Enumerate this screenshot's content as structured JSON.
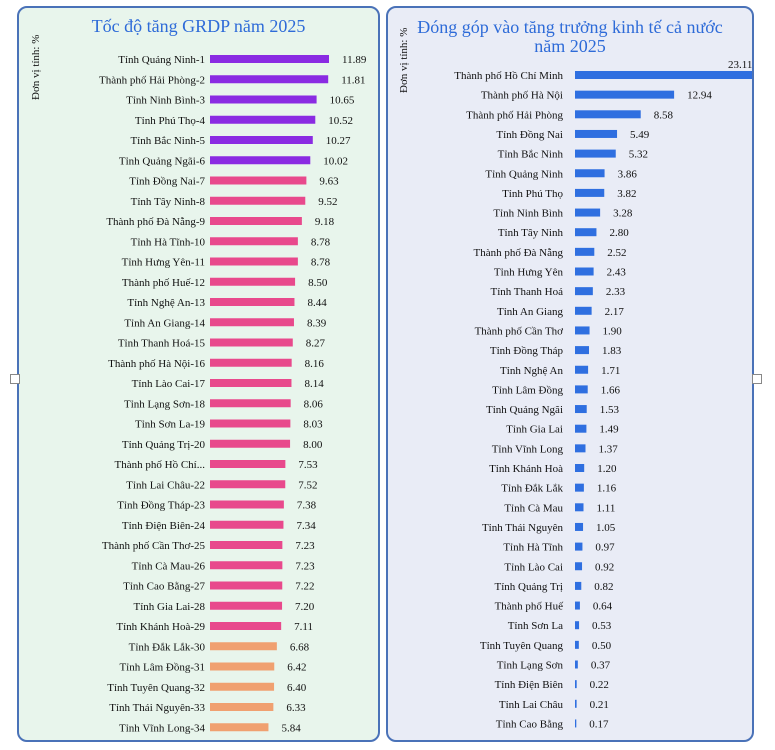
{
  "chart_data": [
    {
      "type": "bar",
      "orientation": "horizontal",
      "title": "Tốc độ tăng GRDP năm 2025",
      "unit_label": "Đơn vị tính: %",
      "categories": [
        "Tỉnh Quảng Ninh-1",
        "Thành phố Hải Phòng-2",
        "Tỉnh Ninh Bình-3",
        "Tỉnh Phú Thọ-4",
        "Tỉnh Bắc Ninh-5",
        "Tỉnh Quảng Ngãi-6",
        "Tỉnh Đồng Nai-7",
        "Tỉnh Tây Ninh-8",
        "Thành phố Đà Nẵng-9",
        "Tỉnh Hà Tĩnh-10",
        "Tỉnh Hưng Yên-11",
        "Thành phố Huế-12",
        "Tỉnh Nghệ An-13",
        "Tỉnh An Giang-14",
        "Tỉnh Thanh Hoá-15",
        "Thành phố Hà Nội-16",
        "Tỉnh Lào Cai-17",
        "Tỉnh Lạng Sơn-18",
        "Tỉnh Sơn La-19",
        "Tỉnh Quảng Trị-20",
        "Thành phố Hồ Chí...",
        "Tỉnh Lai Châu-22",
        "Tỉnh Đồng Tháp-23",
        "Tỉnh Điện Biên-24",
        "Thành phố Cần Thơ-25",
        "Tỉnh Cà Mau-26",
        "Tỉnh Cao Bằng-27",
        "Tỉnh Gia Lai-28",
        "Tỉnh Khánh Hoà-29",
        "Tỉnh Đắk Lắk-30",
        "Tỉnh Lâm Đồng-31",
        "Tỉnh Tuyên Quang-32",
        "Tỉnh Thái Nguyên-33",
        "Tỉnh Vĩnh Long-34"
      ],
      "values": [
        11.89,
        11.81,
        10.65,
        10.52,
        10.27,
        10.02,
        9.63,
        9.52,
        9.18,
        8.78,
        8.78,
        8.5,
        8.44,
        8.39,
        8.27,
        8.16,
        8.14,
        8.06,
        8.03,
        8.0,
        7.53,
        7.52,
        7.38,
        7.34,
        7.23,
        7.23,
        7.22,
        7.2,
        7.11,
        6.68,
        6.42,
        6.4,
        6.33,
        5.84
      ],
      "value_labels": [
        "11.89",
        "11.81",
        "10.65",
        "10.52",
        "10.27",
        "10.02",
        "9.63",
        "9.52",
        "9.18",
        "8.78",
        "8.78",
        "8.50",
        "8.44",
        "8.39",
        "8.27",
        "8.16",
        "8.14",
        "8.06",
        "8.03",
        "8.00",
        "7.53",
        "7.52",
        "7.38",
        "7.34",
        "7.23",
        "7.23",
        "7.22",
        "7.20",
        "7.11",
        "6.68",
        "6.42",
        "6.40",
        "6.33",
        "5.84"
      ],
      "bar_colors": [
        "#8a2be2",
        "#8a2be2",
        "#8a2be2",
        "#8a2be2",
        "#8a2be2",
        "#8a2be2",
        "#e8498c",
        "#e8498c",
        "#e8498c",
        "#e8498c",
        "#e8498c",
        "#e8498c",
        "#e8498c",
        "#e8498c",
        "#e8498c",
        "#e8498c",
        "#e8498c",
        "#e8498c",
        "#e8498c",
        "#e8498c",
        "#e8498c",
        "#e8498c",
        "#e8498c",
        "#e8498c",
        "#e8498c",
        "#e8498c",
        "#e8498c",
        "#e8498c",
        "#e8498c",
        "#f0a070",
        "#f0a070",
        "#f0a070",
        "#f0a070",
        "#f0a070"
      ],
      "xlim": [
        0,
        12
      ],
      "grid": false
    },
    {
      "type": "bar",
      "orientation": "horizontal",
      "title": "Đóng góp vào tăng trưởng kinh tế cả nước năm 2025",
      "unit_label": "Đơn vị tính: %",
      "categories": [
        "Thành phố Hồ Chí Minh",
        "Thành phố Hà Nội",
        "Thành phố Hải Phòng",
        "Tỉnh Đồng Nai",
        "Tỉnh Bắc Ninh",
        "Tỉnh Quảng Ninh",
        "Tỉnh Phú Thọ",
        "Tỉnh Ninh Bình",
        "Tỉnh Tây Ninh",
        "Thành phố Đà Nẵng",
        "Tỉnh Hưng Yên",
        "Tỉnh Thanh Hoá",
        "Tỉnh An Giang",
        "Thành phố Cần Thơ",
        "Tỉnh Đồng Tháp",
        "Tỉnh Nghệ An",
        "Tỉnh Lâm Đồng",
        "Tỉnh Quảng Ngãi",
        "Tỉnh Gia Lai",
        "Tỉnh Vĩnh Long",
        "Tỉnh Khánh Hoà",
        "Tỉnh Đắk Lắk",
        "Tỉnh Cà Mau",
        "Tỉnh Thái Nguyên",
        "Tỉnh Hà Tĩnh",
        "Tỉnh Lào Cai",
        "Tỉnh Quảng Trị",
        "Thành phố Huế",
        "Tỉnh Sơn La",
        "Tỉnh Tuyên Quang",
        "Tỉnh Lạng Sơn",
        "Tỉnh Điện Biên",
        "Tỉnh Lai Châu",
        "Tỉnh Cao Bằng"
      ],
      "values": [
        23.11,
        12.94,
        8.58,
        5.49,
        5.32,
        3.86,
        3.82,
        3.28,
        2.8,
        2.52,
        2.43,
        2.33,
        2.17,
        1.9,
        1.83,
        1.71,
        1.66,
        1.53,
        1.49,
        1.37,
        1.2,
        1.16,
        1.11,
        1.05,
        0.97,
        0.92,
        0.82,
        0.64,
        0.53,
        0.5,
        0.37,
        0.22,
        0.21,
        0.17
      ],
      "value_labels": [
        "23.11",
        "12.94",
        "8.58",
        "5.49",
        "5.32",
        "3.86",
        "3.82",
        "3.28",
        "2.80",
        "2.52",
        "2.43",
        "2.33",
        "2.17",
        "1.90",
        "1.83",
        "1.71",
        "1.66",
        "1.53",
        "1.49",
        "1.37",
        "1.20",
        "1.16",
        "1.11",
        "1.05",
        "0.97",
        "0.92",
        "0.82",
        "0.64",
        "0.53",
        "0.50",
        "0.37",
        "0.22",
        "0.21",
        "0.17"
      ],
      "bar_color": "#2f6fe0",
      "xlim": [
        0,
        24
      ],
      "grid": false
    }
  ]
}
